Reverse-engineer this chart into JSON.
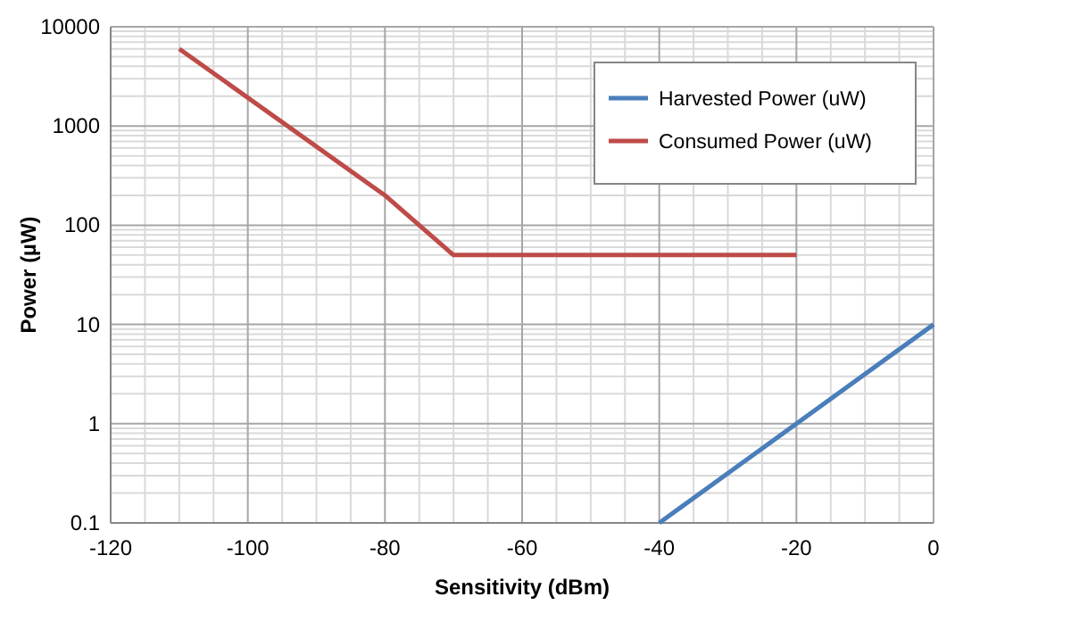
{
  "chart_data": {
    "type": "line",
    "xlabel": "Sensitivity (dBm)",
    "ylabel": "Power (µW)",
    "log": "y",
    "grid": true,
    "legend": "top right",
    "marker": "none",
    "line_style": "solid",
    "xlim": [
      -120,
      0
    ],
    "xticks": [
      -120,
      -100,
      -80,
      -60,
      -40,
      -20,
      0
    ],
    "ylim": [
      0.1,
      10000
    ],
    "yticks": [
      0.1,
      1,
      10,
      100,
      1000,
      10000
    ],
    "series": [
      {
        "name": "Harvested Power (uW)",
        "color": "#4a7ebb",
        "x": [
          -40,
          0
        ],
        "values": [
          0.1,
          10
        ]
      },
      {
        "name": "Consumed Power (uW)",
        "color": "#be4b48",
        "x": [
          -110,
          -80,
          -70,
          -20
        ],
        "values": [
          6000,
          200,
          50,
          50
        ]
      }
    ]
  }
}
